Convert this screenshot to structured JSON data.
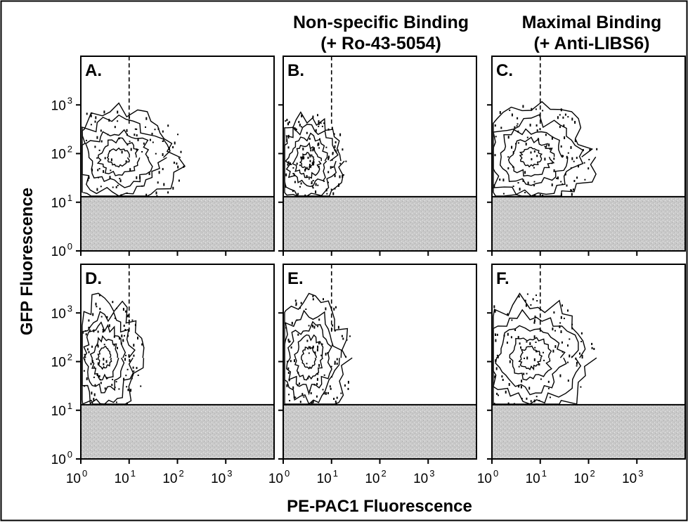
{
  "figure": {
    "column_titles": [
      {
        "line1": "",
        "line2": ""
      },
      {
        "line1": "Non-specific Binding",
        "line2": "(+ Ro-43-5054)"
      },
      {
        "line1": "Maximal Binding",
        "line2": "(+ Anti-LIBS6)"
      }
    ],
    "xlabel": "PE-PAC1 Fluorescence",
    "ylabel": "GFP Fluorescence"
  },
  "chart_data": {
    "type": "contour",
    "xscale": "log",
    "yscale": "log",
    "xlim": [
      1,
      10000
    ],
    "ylim": [
      1,
      10000
    ],
    "xticks": [
      {
        "base": "10",
        "exp": "0",
        "value": 1
      },
      {
        "base": "10",
        "exp": "1",
        "value": 10
      },
      {
        "base": "10",
        "exp": "2",
        "value": 100
      },
      {
        "base": "10",
        "exp": "3",
        "value": 1000
      }
    ],
    "yticks": [
      {
        "base": "10",
        "exp": "0",
        "value": 1
      },
      {
        "base": "10",
        "exp": "1",
        "value": 10
      },
      {
        "base": "10",
        "exp": "2",
        "value": 100
      },
      {
        "base": "10",
        "exp": "3",
        "value": 1000
      }
    ],
    "gate_x": 10,
    "gfp_threshold": 13,
    "panels": [
      {
        "letter": "A.",
        "x_spread": [
          1,
          250
        ],
        "y_spread": [
          13,
          1200
        ]
      },
      {
        "letter": "B.",
        "x_spread": [
          1,
          30
        ],
        "y_spread": [
          13,
          800
        ]
      },
      {
        "letter": "C.",
        "x_spread": [
          1,
          300
        ],
        "y_spread": [
          13,
          1300
        ]
      },
      {
        "letter": "D.",
        "x_spread": [
          1,
          30
        ],
        "y_spread": [
          13,
          3000
        ]
      },
      {
        "letter": "E.",
        "x_spread": [
          1,
          40
        ],
        "y_spread": [
          13,
          3000
        ]
      },
      {
        "letter": "F.",
        "x_spread": [
          1,
          250
        ],
        "y_spread": [
          13,
          3000
        ]
      }
    ]
  }
}
